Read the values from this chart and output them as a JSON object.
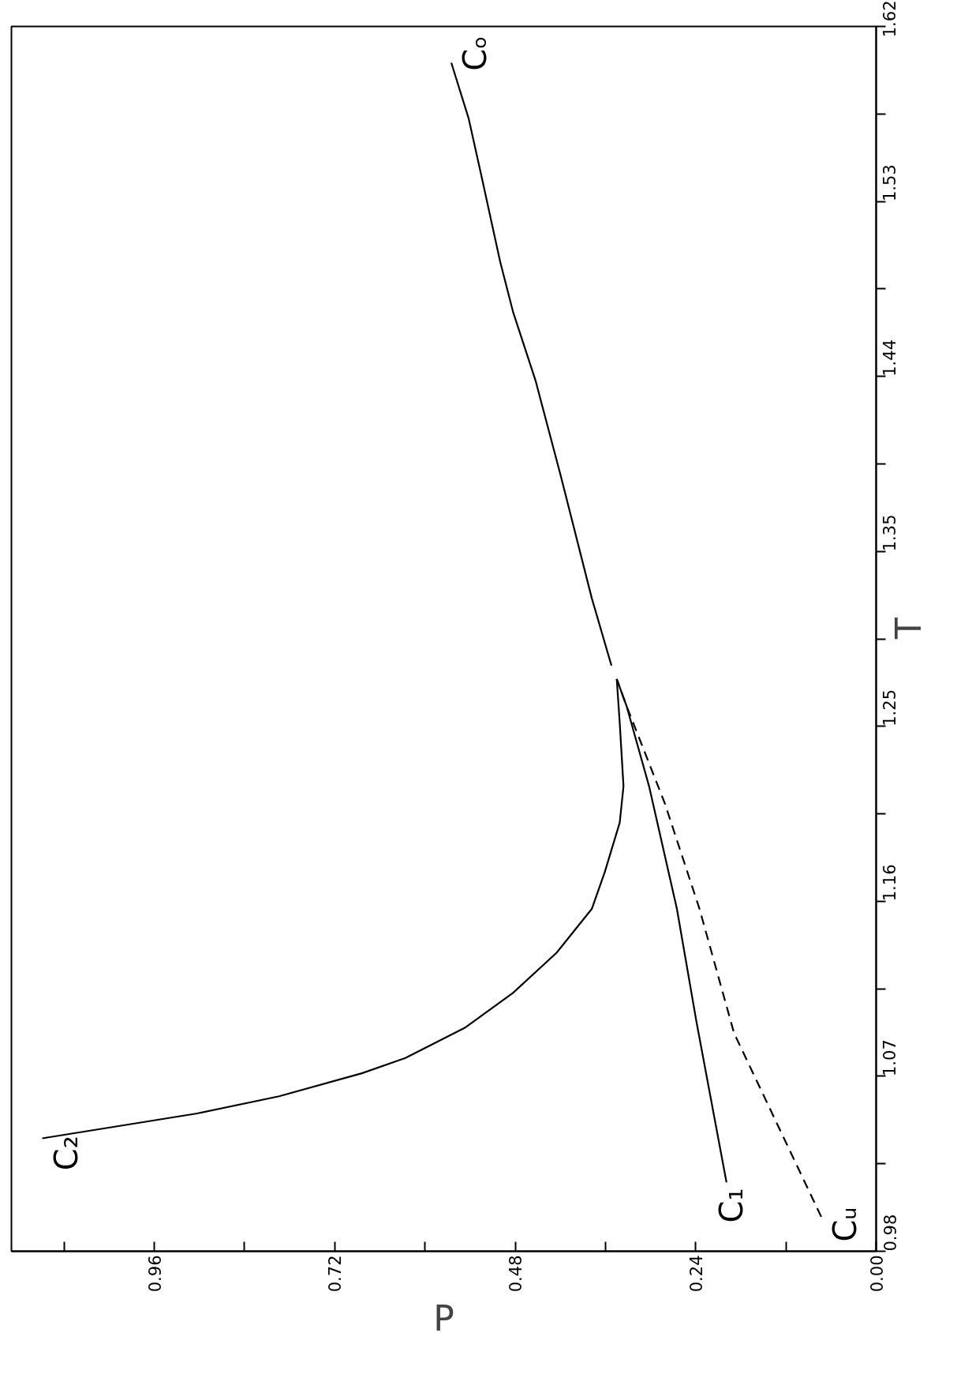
{
  "chart_data": {
    "type": "line",
    "xlabel": "P",
    "ylabel": "T",
    "xlim": [
      1.15,
      0
    ],
    "ylim": [
      0.98,
      1.62
    ],
    "xticks": [
      {
        "value": 0,
        "label": "0.00"
      },
      {
        "value": 0.12,
        "label": null
      },
      0.24,
      {
        "value": 0.36,
        "label": null
      },
      0.48,
      {
        "value": 0.6,
        "label": null
      },
      0.72,
      {
        "value": 0.84,
        "label": null
      },
      0.96,
      {
        "value": 1.08,
        "label": null
      }
    ],
    "yticks": [
      0.98,
      {
        "value": 1.0257,
        "label": null
      },
      {
        "value": 1.0714,
        "label": "1.07"
      },
      {
        "value": 1.1171,
        "label": null
      },
      {
        "value": 1.1629,
        "label": "1.16"
      },
      {
        "value": 1.2086,
        "label": null
      },
      {
        "value": 1.2543,
        "label": "1.25"
      },
      {
        "value": 1.3,
        "label": null
      },
      {
        "value": 1.3457,
        "label": "1.35"
      },
      {
        "value": 1.3914,
        "label": null
      },
      {
        "value": 1.4371,
        "label": "1.44"
      },
      {
        "value": 1.4829,
        "label": null
      },
      {
        "value": 1.5286,
        "label": "1.53"
      },
      {
        "value": 1.5743,
        "label": null
      },
      {
        "value": 1.62,
        "label": "1.62"
      }
    ],
    "series": [
      {
        "name": "C₂",
        "color": "#000000",
        "line_style": "solid",
        "x": [
          1.109,
          0.903,
          0.794,
          0.684,
          0.626,
          0.546,
          0.483,
          0.425,
          0.378,
          0.361,
          0.341,
          0.336,
          0.341,
          0.345
        ],
        "values": [
          1.039,
          1.052,
          1.061,
          1.073,
          1.081,
          1.097,
          1.115,
          1.136,
          1.159,
          1.178,
          1.204,
          1.223,
          1.256,
          1.279
        ]
      },
      {
        "name": "C₁",
        "color": "#000000",
        "line_style": "solid",
        "x": [
          0.199,
          0.239,
          0.265,
          0.302,
          0.332,
          0.345
        ],
        "values": [
          1.016,
          1.1,
          1.159,
          1.223,
          1.265,
          1.279
        ]
      },
      {
        "name": "Cᵤ",
        "color": "#000000",
        "line_style": "dashed",
        "x": [
          0.073,
          0.189,
          0.235,
          0.281,
          0.332,
          0.345
        ],
        "values": [
          0.998,
          1.094,
          1.159,
          1.214,
          1.265,
          1.279
        ]
      },
      {
        "name": "Cₒ",
        "color": "#000000",
        "line_style": "solid",
        "x": [
          0.352,
          0.378,
          0.42,
          0.453,
          0.483,
          0.5,
          0.525,
          0.542,
          0.565
        ],
        "values": [
          1.286,
          1.321,
          1.386,
          1.435,
          1.471,
          1.497,
          1.542,
          1.572,
          1.601
        ]
      }
    ]
  }
}
